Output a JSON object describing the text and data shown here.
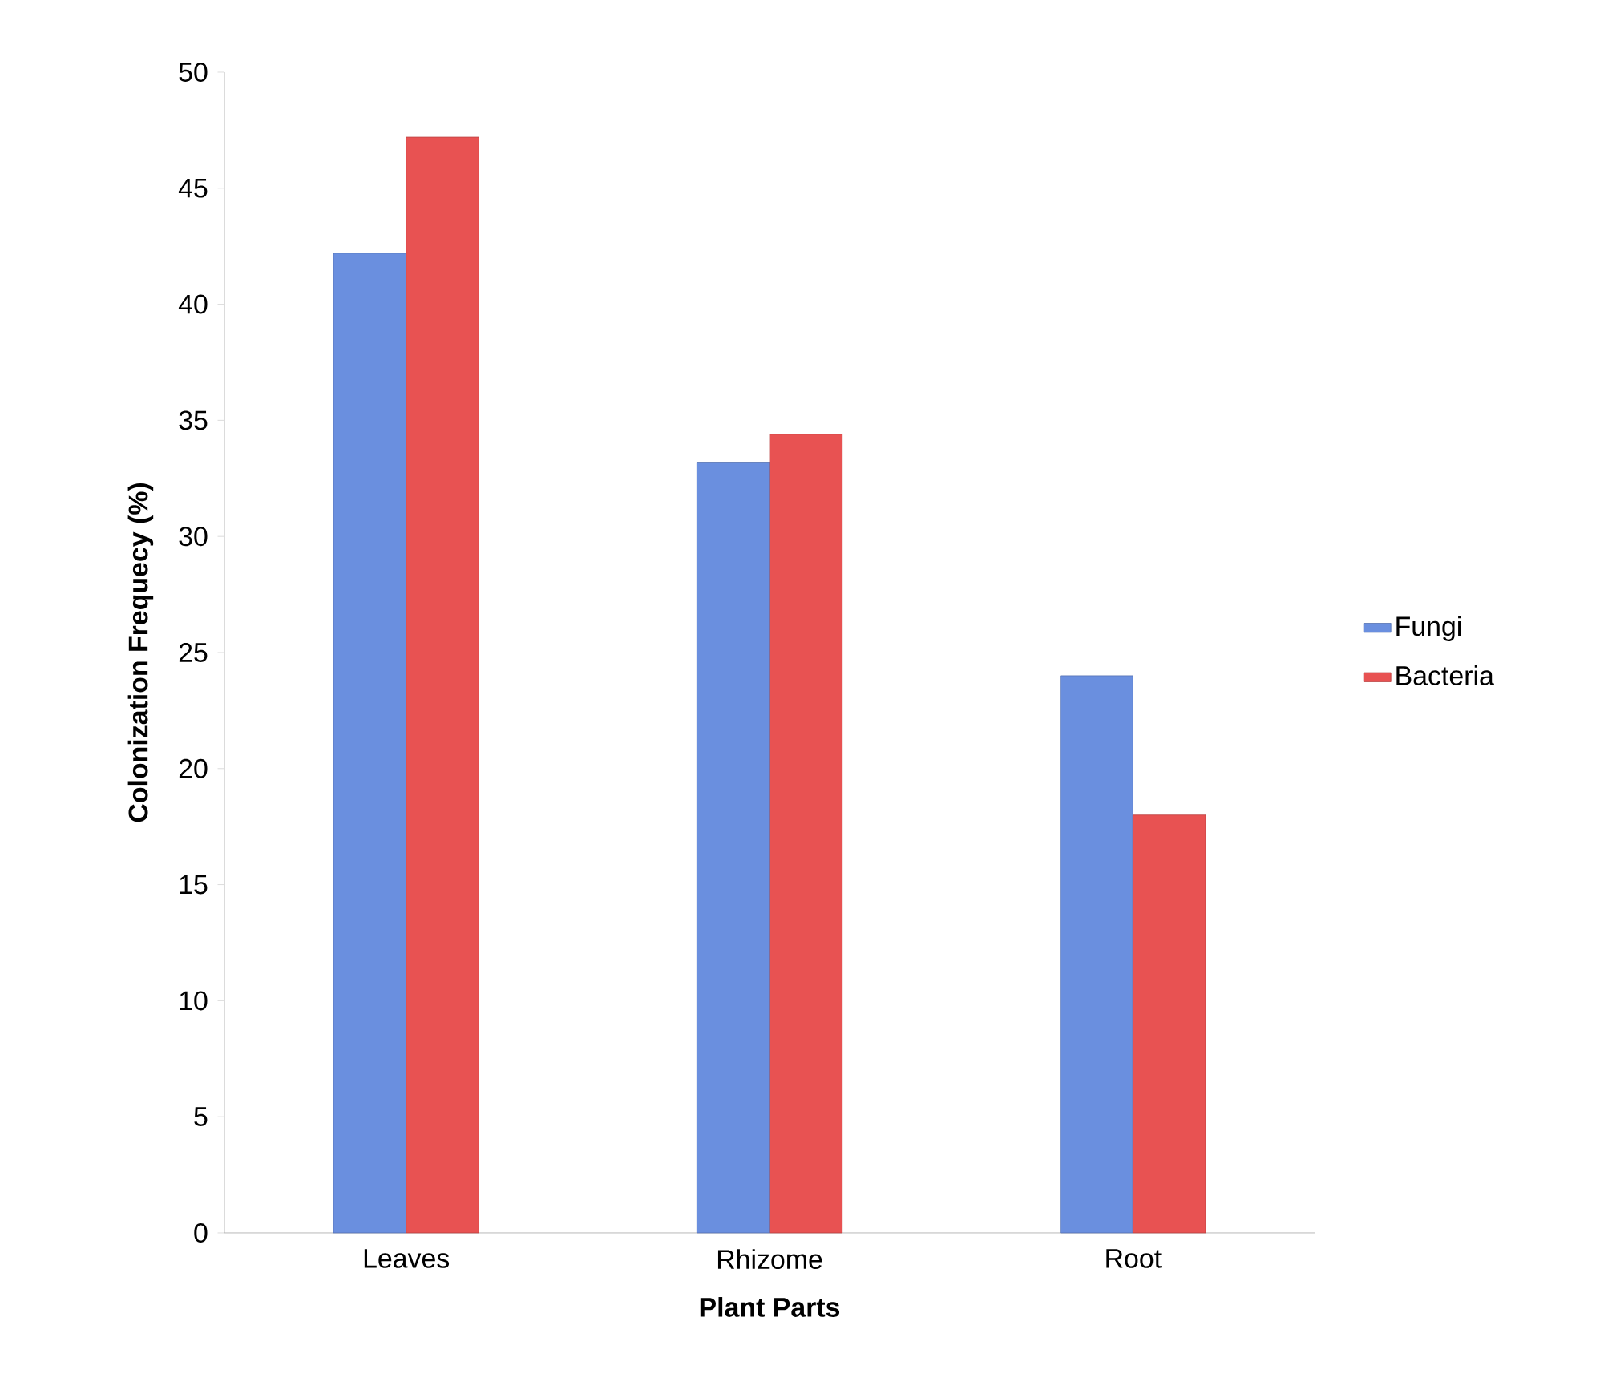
{
  "chart_data": {
    "type": "bar",
    "xlabel": "Plant Parts",
    "ylabel": "Colonization Frequecy (%)",
    "categories": [
      "Leaves",
      "Rhizome",
      "Root"
    ],
    "series": [
      {
        "name": "Fungi",
        "color": "#6a8fdf",
        "values": [
          42.2,
          33.2,
          24.0
        ]
      },
      {
        "name": "Bacteria",
        "color": "#e85252",
        "values": [
          47.2,
          34.4,
          18.0
        ]
      }
    ],
    "ylim": [
      0,
      50
    ],
    "yticks": [
      0,
      5,
      10,
      15,
      20,
      25,
      30,
      35,
      40,
      45,
      50
    ],
    "grid": false,
    "legend": "right"
  }
}
